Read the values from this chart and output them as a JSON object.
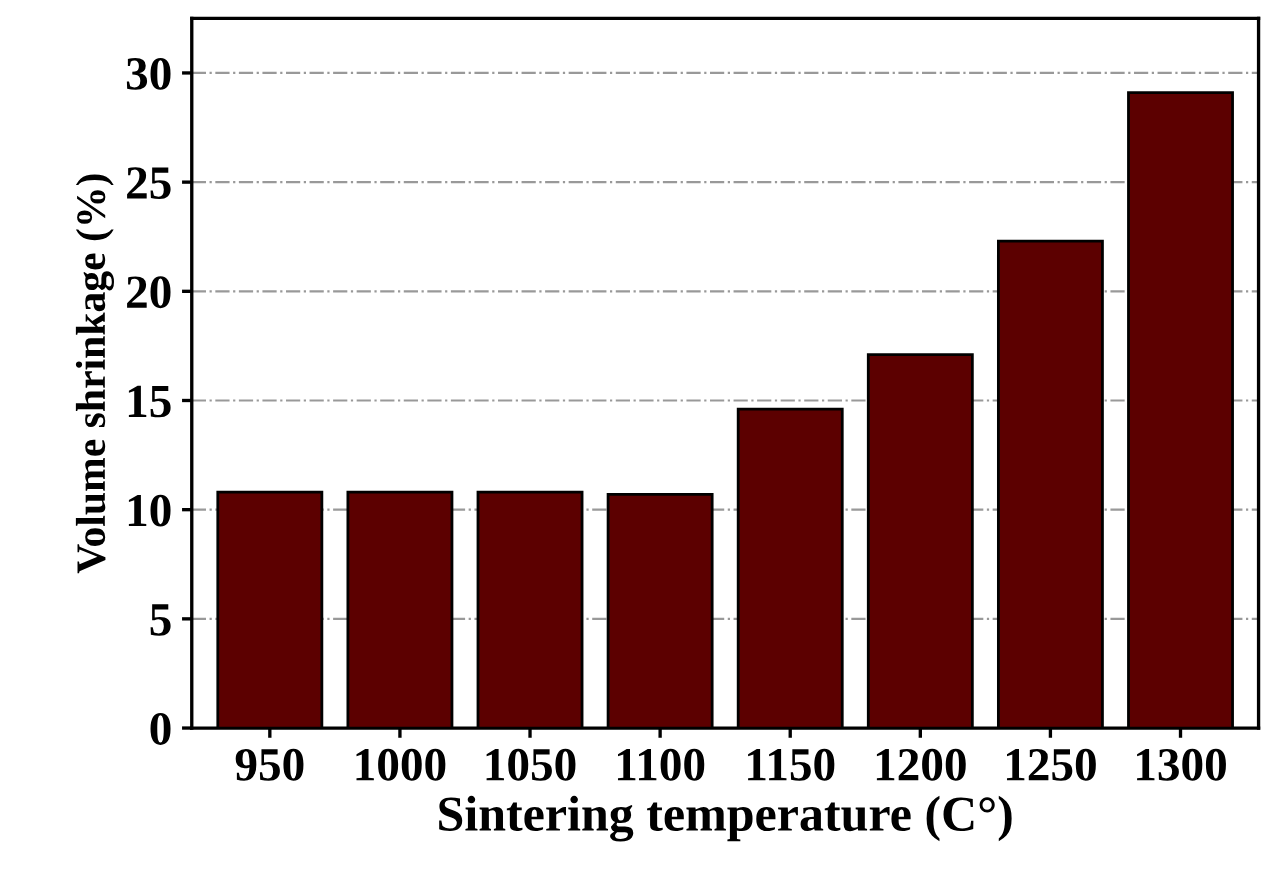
{
  "chart_data": {
    "type": "bar",
    "xlabel": "Sintering temperature (C°)",
    "ylabel": "Volume shrinkage (%)",
    "categories": [
      "950",
      "1000",
      "1050",
      "1100",
      "1150",
      "1200",
      "1250",
      "1300"
    ],
    "values": [
      10.8,
      10.8,
      10.8,
      10.7,
      14.6,
      17.1,
      22.3,
      29.1
    ],
    "color": "#5c0000",
    "ylim": [
      0,
      32.5
    ],
    "yticks": [
      0,
      5,
      10,
      15,
      20,
      25,
      30
    ],
    "grid": "y"
  }
}
